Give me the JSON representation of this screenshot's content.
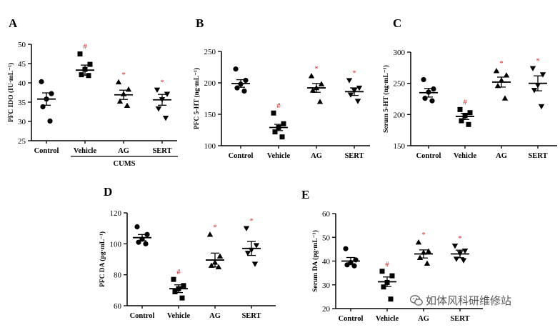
{
  "colors": {
    "ink": "#000000",
    "significance": "#d62728",
    "watermark": "#555555"
  },
  "chart_data": [
    {
      "panel": "A",
      "type": "scatter",
      "ylabel": "PFC IDO (IU·mL⁻¹)",
      "ylim": [
        25,
        50
      ],
      "yticks": [
        25,
        30,
        35,
        40,
        45,
        50
      ],
      "categories": [
        "Control",
        "Vehicle",
        "AG",
        "SERT"
      ],
      "markers": [
        "circle",
        "square",
        "triangle",
        "triangle-down"
      ],
      "group_label": "CUMS",
      "group_span": [
        1,
        3
      ],
      "sig": [
        "",
        "#",
        "*",
        "*"
      ],
      "means": [
        35.8,
        43.3,
        36.9,
        35.6
      ],
      "sems": [
        1.6,
        1.3,
        1.2,
        1.4
      ],
      "points": [
        [
          40.3,
          37.2,
          35.8,
          33.8,
          30.1
        ],
        [
          47.5,
          44.8,
          43.5,
          42.1,
          41.9
        ],
        [
          40.2,
          38.3,
          37.1,
          35.2,
          34.1
        ],
        [
          38.2,
          37.1,
          35.7,
          33.3,
          30.9
        ]
      ]
    },
    {
      "panel": "B",
      "type": "scatter",
      "ylabel": "PFC 5-HT (ng·mL⁻¹)",
      "ylim": [
        100,
        250
      ],
      "yticks": [
        100,
        150,
        200,
        250
      ],
      "categories": [
        "Control",
        "Vehicle",
        "AG",
        "SERT"
      ],
      "markers": [
        "circle",
        "square",
        "triangle",
        "triangle-down"
      ],
      "sig": [
        "",
        "#",
        "*",
        "*"
      ],
      "means": [
        199,
        129,
        192,
        186
      ],
      "sems": [
        6,
        5,
        7,
        6
      ],
      "points": [
        [
          222,
          204,
          198,
          192,
          187
        ],
        [
          152,
          135,
          129,
          122,
          114
        ],
        [
          211,
          198,
          192,
          188,
          170
        ],
        [
          204,
          192,
          188,
          181,
          171
        ]
      ]
    },
    {
      "panel": "C",
      "type": "scatter",
      "ylabel": "Serum 5-HT (ng·mL⁻¹)",
      "ylim": [
        150,
        300
      ],
      "yticks": [
        150,
        200,
        250,
        300
      ],
      "categories": [
        "Control",
        "Vehicle",
        "AG",
        "SERT"
      ],
      "markers": [
        "circle",
        "square",
        "triangle",
        "triangle-down"
      ],
      "sig": [
        "",
        "#",
        "*",
        "*"
      ],
      "means": [
        235,
        197,
        252,
        250
      ],
      "sems": [
        7,
        5,
        8,
        12
      ],
      "points": [
        [
          256,
          241,
          236,
          226,
          222
        ],
        [
          208,
          203,
          198,
          190,
          184
        ],
        [
          270,
          263,
          255,
          246,
          226
        ],
        [
          274,
          264,
          247,
          239,
          213
        ]
      ]
    },
    {
      "panel": "D",
      "type": "scatter",
      "ylabel": "PFC DA (pg·mL⁻¹)",
      "ylim": [
        60,
        120
      ],
      "yticks": [
        60,
        80,
        100,
        120
      ],
      "categories": [
        "Control",
        "Vehicle",
        "AG",
        "SERT"
      ],
      "markers": [
        "circle",
        "square",
        "triangle",
        "triangle-down"
      ],
      "sig": [
        "",
        "#",
        "*",
        "*"
      ],
      "means": [
        104,
        71,
        89.5,
        97
      ],
      "sems": [
        2,
        2.5,
        4.5,
        4.5
      ],
      "points": [
        [
          111,
          106,
          103,
          101,
          100
        ],
        [
          77,
          73,
          71,
          69,
          65
        ],
        [
          106,
          92,
          88,
          86,
          85
        ],
        [
          110,
          99,
          96,
          94,
          87
        ]
      ]
    },
    {
      "panel": "E",
      "type": "scatter",
      "ylabel": "Serum DA (pg·mL⁻¹)",
      "ylim": [
        20,
        60
      ],
      "yticks": [
        20,
        30,
        40,
        50,
        60
      ],
      "categories": [
        "Control",
        "Vehicle",
        "AG",
        "SERT"
      ],
      "markers": [
        "circle",
        "square",
        "triangle",
        "triangle-down"
      ],
      "sig": [
        "",
        "#",
        "*",
        "*"
      ],
      "means": [
        40,
        31.3,
        43,
        43
      ],
      "sems": [
        1.5,
        2,
        1.7,
        1.6
      ],
      "points": [
        [
          45.2,
          40.5,
          39.4,
          38.4,
          38.0
        ],
        [
          35.7,
          33.8,
          31.0,
          29.1,
          24.0
        ],
        [
          47.9,
          44.1,
          43.6,
          41.4,
          39.0
        ],
        [
          46.4,
          44.3,
          43.3,
          40.9,
          40.3
        ]
      ]
    }
  ],
  "watermark": {
    "text": "如体风科研维修站",
    "icon": "wechat-icon"
  }
}
